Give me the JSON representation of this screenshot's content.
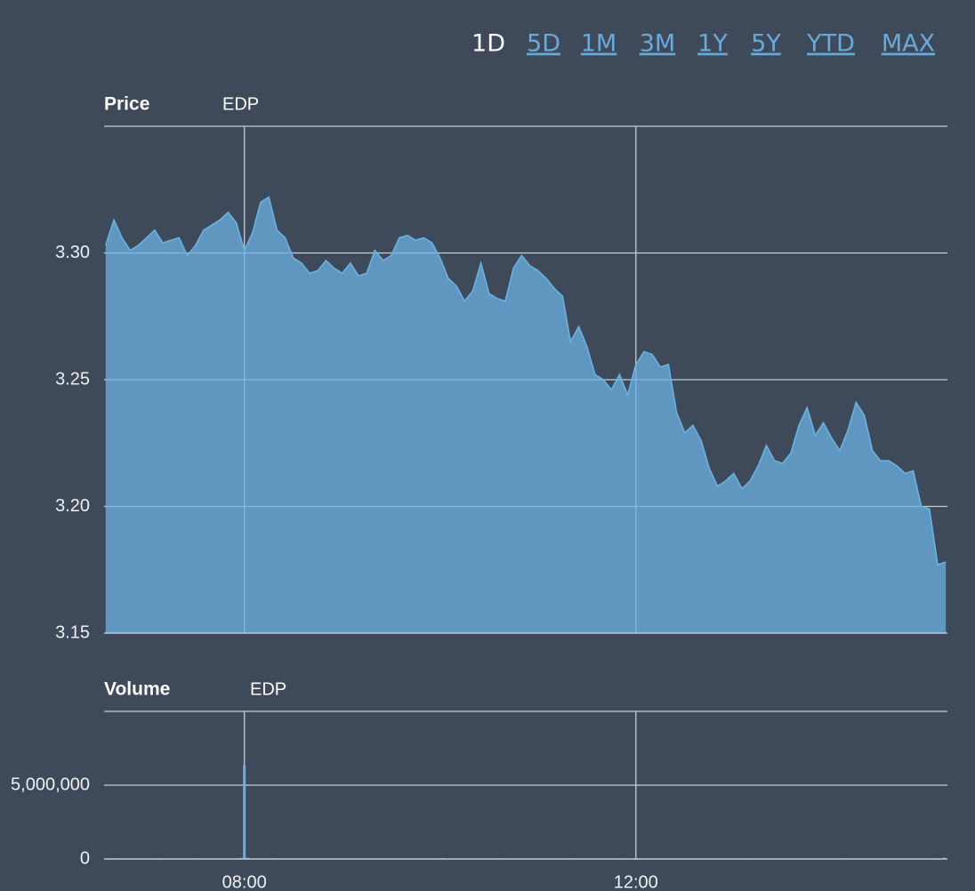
{
  "range_buttons": [
    {
      "label": "1D",
      "selected": true
    },
    {
      "label": "5D",
      "selected": false
    },
    {
      "label": "1M",
      "selected": false
    },
    {
      "label": "3M",
      "selected": false
    },
    {
      "label": "1Y",
      "selected": false
    },
    {
      "label": "5Y",
      "selected": false
    },
    {
      "label": "YTD",
      "selected": false
    },
    {
      "label": "MAX",
      "selected": false
    }
  ],
  "x_axis": {
    "xlim": [
      "06:34",
      "15:11"
    ],
    "xticks": [
      "08:00",
      "12:00"
    ]
  },
  "chart_data": [
    {
      "type": "area",
      "title": "Price",
      "x": [
        "06:35",
        "06:40",
        "06:45",
        "06:50",
        "06:55",
        "07:00",
        "07:05",
        "07:10",
        "07:15",
        "07:20",
        "07:25",
        "07:30",
        "07:35",
        "07:40",
        "07:45",
        "07:50",
        "07:55",
        "08:00",
        "08:05",
        "08:10",
        "08:15",
        "08:20",
        "08:25",
        "08:30",
        "08:35",
        "08:40",
        "08:45",
        "08:50",
        "08:55",
        "09:00",
        "09:05",
        "09:10",
        "09:15",
        "09:20",
        "09:25",
        "09:30",
        "09:35",
        "09:40",
        "09:45",
        "09:50",
        "09:55",
        "10:00",
        "10:05",
        "10:10",
        "10:15",
        "10:20",
        "10:25",
        "10:30",
        "10:35",
        "10:40",
        "10:45",
        "10:50",
        "10:55",
        "11:00",
        "11:05",
        "11:10",
        "11:15",
        "11:20",
        "11:25",
        "11:30",
        "11:35",
        "11:40",
        "11:45",
        "11:50",
        "11:55",
        "12:00",
        "12:05",
        "12:10",
        "12:15",
        "12:20",
        "12:25",
        "12:30",
        "12:35",
        "12:40",
        "12:45",
        "12:50",
        "12:55",
        "13:00",
        "13:05",
        "13:10",
        "13:15",
        "13:20",
        "13:25",
        "13:30",
        "13:35",
        "13:40",
        "13:45",
        "13:50",
        "13:55",
        "14:00",
        "14:05",
        "14:10",
        "14:15",
        "14:20",
        "14:25",
        "14:30",
        "14:35",
        "14:40",
        "14:45",
        "14:50",
        "14:55",
        "15:00",
        "15:05",
        "15:10"
      ],
      "series": [
        {
          "name": "EDP",
          "color": "#6ab2e4",
          "values": [
            3.303,
            3.313,
            3.306,
            3.301,
            3.303,
            3.306,
            3.309,
            3.304,
            3.305,
            3.306,
            3.299,
            3.303,
            3.309,
            3.311,
            3.313,
            3.316,
            3.312,
            3.301,
            3.308,
            3.32,
            3.322,
            3.309,
            3.306,
            3.298,
            3.296,
            3.292,
            3.293,
            3.297,
            3.294,
            3.292,
            3.296,
            3.291,
            3.292,
            3.301,
            3.297,
            3.299,
            3.306,
            3.307,
            3.305,
            3.306,
            3.304,
            3.298,
            3.29,
            3.287,
            3.281,
            3.285,
            3.296,
            3.284,
            3.282,
            3.281,
            3.294,
            3.299,
            3.295,
            3.293,
            3.29,
            3.286,
            3.283,
            3.265,
            3.271,
            3.263,
            3.252,
            3.25,
            3.246,
            3.252,
            3.244,
            3.256,
            3.261,
            3.26,
            3.255,
            3.256,
            3.237,
            3.229,
            3.232,
            3.226,
            3.215,
            3.208,
            3.21,
            3.213,
            3.207,
            3.21,
            3.216,
            3.224,
            3.218,
            3.217,
            3.221,
            3.232,
            3.239,
            3.228,
            3.233,
            3.227,
            3.222,
            3.23,
            3.241,
            3.236,
            3.222,
            3.218,
            3.218,
            3.216,
            3.213,
            3.214,
            3.2,
            3.199,
            3.177,
            3.178
          ]
        }
      ],
      "ylim": [
        3.15,
        3.35
      ],
      "yticks": [
        3.15,
        {
          "value": 3.2,
          "label": "3.20"
        },
        3.25,
        {
          "value": 3.3,
          "label": "3.30"
        }
      ],
      "grid": true
    },
    {
      "type": "bar",
      "title": "Volume",
      "x": [
        "06:36",
        "06:41",
        "06:52",
        "07:02",
        "07:08",
        "07:15",
        "07:31",
        "07:55",
        "07:58",
        "08:00",
        "08:02",
        "08:17",
        "08:35",
        "09:00",
        "09:16",
        "09:33",
        "09:50",
        "10:01",
        "10:37",
        "10:39",
        "11:17",
        "11:21",
        "11:36",
        "11:52",
        "11:59",
        "12:00",
        "12:26",
        "13:12",
        "13:21",
        "13:48",
        "14:06",
        "14:21",
        "14:39",
        "14:51",
        "15:04",
        "15:09"
      ],
      "series": [
        {
          "name": "EDP",
          "color": "#6ab2e4",
          "values": [
            40000,
            50000,
            30000,
            40000,
            60000,
            30000,
            50000,
            40000,
            70000,
            6350000,
            80000,
            40000,
            30000,
            30000,
            30000,
            30000,
            30000,
            60000,
            40000,
            30000,
            30000,
            40000,
            30000,
            40000,
            50000,
            60000,
            30000,
            40000,
            30000,
            30000,
            40000,
            30000,
            30000,
            30000,
            50000,
            90000
          ]
        }
      ],
      "ylim": [
        0,
        10000000
      ],
      "yticks": [
        0,
        {
          "value": 5000000,
          "label": "5,000,000"
        }
      ],
      "grid": true
    }
  ]
}
